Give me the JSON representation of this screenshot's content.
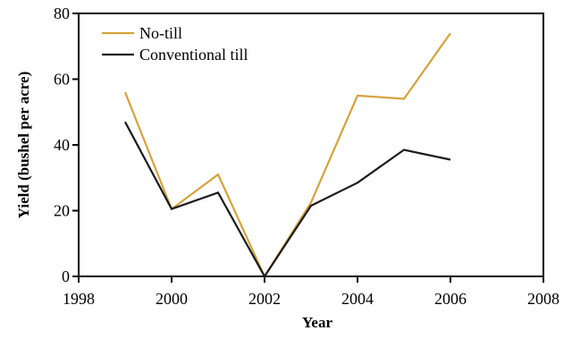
{
  "chart_data": {
    "type": "line",
    "title": "",
    "xlabel": "Year",
    "ylabel": "Yield (bushel per acre)",
    "xlim": [
      1998,
      2008
    ],
    "ylim": [
      0,
      80
    ],
    "xticks": [
      1998,
      2000,
      2002,
      2004,
      2006,
      2008
    ],
    "yticks": [
      0,
      20,
      40,
      60,
      80
    ],
    "grid": false,
    "legend_position": "top-left",
    "series": [
      {
        "name": "No-till",
        "color": "#d4a23c",
        "x": [
          1999,
          2000,
          2001,
          2002,
          2003,
          2004,
          2005,
          2006
        ],
        "y": [
          56,
          20.5,
          31,
          0,
          22.5,
          55,
          54,
          74
        ]
      },
      {
        "name": "Conventional till",
        "color": "#1a1a1a",
        "x": [
          1999,
          2000,
          2001,
          2002,
          2003,
          2004,
          2005,
          2006
        ],
        "y": [
          47,
          20.5,
          25.5,
          0,
          21.5,
          28.5,
          38.5,
          35.5
        ]
      }
    ]
  }
}
